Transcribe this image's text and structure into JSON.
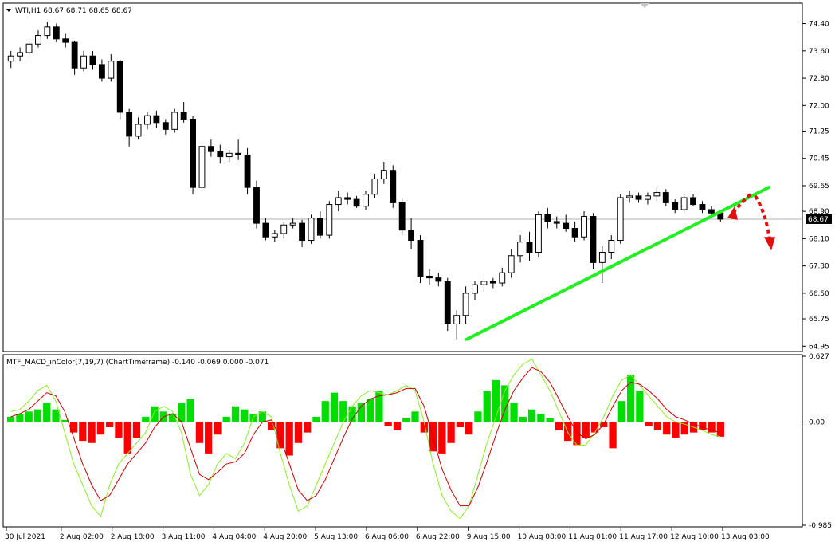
{
  "chart_data": {
    "type": "candlestick",
    "main": {
      "header": "WTI,H1  68.67 68.71 68.65 68.67",
      "symbol": "WTI",
      "timeframe": "H1",
      "ohlc_readout": [
        68.67,
        68.71,
        68.65,
        68.67
      ],
      "ylim": [
        64.84,
        74.95
      ],
      "y_ticks": [
        "74.40",
        "73.60",
        "72.80",
        "72.00",
        "71.25",
        "70.45",
        "69.65",
        "68.90",
        "68.10",
        "67.30",
        "66.50",
        "65.75",
        "64.95"
      ],
      "current_price": "68.67",
      "current_price_value": 68.67,
      "candles_approx": [
        [
          73.3,
          73.6,
          73.1,
          73.45
        ],
        [
          73.45,
          73.7,
          73.3,
          73.55
        ],
        [
          73.55,
          73.9,
          73.4,
          73.8
        ],
        [
          73.8,
          74.2,
          73.7,
          74.05
        ],
        [
          74.05,
          74.45,
          73.95,
          74.3
        ],
        [
          74.3,
          74.4,
          73.85,
          73.95
        ],
        [
          73.95,
          74.1,
          73.7,
          73.85
        ],
        [
          73.85,
          73.9,
          72.9,
          73.1
        ],
        [
          73.1,
          73.6,
          73.0,
          73.45
        ],
        [
          73.45,
          73.6,
          73.05,
          73.2
        ],
        [
          73.2,
          73.35,
          72.7,
          72.8
        ],
        [
          72.8,
          73.5,
          72.7,
          73.3
        ],
        [
          73.3,
          73.35,
          71.6,
          71.8
        ],
        [
          71.8,
          71.9,
          70.8,
          71.1
        ],
        [
          71.1,
          71.65,
          71.0,
          71.45
        ],
        [
          71.45,
          71.8,
          71.3,
          71.7
        ],
        [
          71.7,
          71.85,
          71.35,
          71.5
        ],
        [
          71.5,
          71.6,
          71.15,
          71.3
        ],
        [
          71.3,
          71.9,
          71.2,
          71.8
        ],
        [
          71.8,
          72.1,
          71.5,
          71.6
        ],
        [
          71.6,
          71.7,
          69.4,
          69.6
        ],
        [
          69.6,
          70.95,
          69.5,
          70.8
        ],
        [
          70.8,
          71.0,
          70.5,
          70.65
        ],
        [
          70.65,
          70.85,
          70.3,
          70.5
        ],
        [
          70.5,
          70.7,
          70.35,
          70.6
        ],
        [
          70.6,
          71.0,
          70.4,
          70.55
        ],
        [
          70.55,
          70.75,
          69.4,
          69.6
        ],
        [
          69.6,
          69.8,
          68.4,
          68.55
        ],
        [
          68.55,
          68.7,
          68.05,
          68.15
        ],
        [
          68.15,
          68.35,
          68.0,
          68.25
        ],
        [
          68.25,
          68.6,
          68.1,
          68.5
        ],
        [
          68.5,
          68.7,
          68.4,
          68.55
        ],
        [
          68.55,
          68.65,
          67.85,
          68.05
        ],
        [
          68.05,
          68.8,
          67.95,
          68.7
        ],
        [
          68.7,
          68.9,
          68.1,
          68.2
        ],
        [
          68.2,
          69.2,
          68.1,
          69.1
        ],
        [
          69.1,
          69.5,
          68.9,
          69.3
        ],
        [
          69.3,
          69.45,
          69.1,
          69.25
        ],
        [
          69.25,
          69.35,
          69.0,
          69.05
        ],
        [
          69.05,
          69.5,
          68.95,
          69.4
        ],
        [
          69.4,
          70.0,
          69.3,
          69.85
        ],
        [
          69.85,
          70.35,
          69.7,
          70.1
        ],
        [
          70.1,
          70.25,
          69.0,
          69.15
        ],
        [
          69.15,
          69.3,
          68.2,
          68.35
        ],
        [
          68.35,
          68.7,
          67.8,
          68.05
        ],
        [
          68.05,
          68.2,
          66.8,
          67.0
        ],
        [
          67.0,
          67.2,
          66.75,
          66.95
        ],
        [
          66.95,
          67.1,
          66.7,
          66.85
        ],
        [
          66.85,
          66.95,
          65.4,
          65.6
        ],
        [
          65.6,
          66.0,
          65.15,
          65.85
        ],
        [
          65.85,
          66.7,
          65.6,
          66.5
        ],
        [
          66.5,
          66.85,
          66.3,
          66.75
        ],
        [
          66.75,
          66.95,
          66.55,
          66.85
        ],
        [
          66.85,
          66.95,
          66.65,
          66.8
        ],
        [
          66.8,
          67.25,
          66.7,
          67.1
        ],
        [
          67.1,
          67.8,
          66.95,
          67.6
        ],
        [
          67.6,
          68.2,
          67.4,
          68.0
        ],
        [
          68.0,
          68.3,
          67.45,
          67.7
        ],
        [
          67.7,
          68.9,
          67.55,
          68.8
        ],
        [
          68.8,
          69.0,
          68.4,
          68.6
        ],
        [
          68.6,
          68.75,
          68.4,
          68.55
        ],
        [
          68.55,
          68.8,
          68.3,
          68.4
        ],
        [
          68.4,
          68.6,
          68.0,
          68.15
        ],
        [
          68.15,
          68.9,
          68.05,
          68.75
        ],
        [
          68.75,
          68.85,
          67.2,
          67.4
        ],
        [
          67.4,
          67.9,
          66.8,
          67.7
        ],
        [
          67.7,
          68.2,
          67.5,
          68.05
        ],
        [
          68.05,
          69.4,
          67.95,
          69.3
        ],
        [
          69.3,
          69.5,
          69.15,
          69.35
        ],
        [
          69.35,
          69.45,
          69.15,
          69.25
        ],
        [
          69.25,
          69.45,
          69.1,
          69.35
        ],
        [
          69.35,
          69.6,
          69.2,
          69.45
        ],
        [
          69.45,
          69.55,
          69.05,
          69.15
        ],
        [
          69.15,
          69.25,
          68.85,
          68.95
        ],
        [
          68.95,
          69.4,
          68.85,
          69.3
        ],
        [
          69.3,
          69.4,
          69.05,
          69.1
        ],
        [
          69.1,
          69.2,
          68.85,
          68.95
        ],
        [
          68.95,
          69.05,
          68.75,
          68.85
        ],
        [
          68.85,
          68.95,
          68.6,
          68.67
        ]
      ]
    },
    "indicator": {
      "header": "MTF_MACD_inColor(7,19,7) (ChartTimeframe) -0.140 -0.069 0.000 -0.071",
      "name": "MTF_MACD_inColor",
      "params": "7,19,7",
      "values": [
        -0.14,
        -0.069,
        0.0,
        -0.071
      ],
      "ylim": [
        -0.985,
        0.627
      ],
      "y_ticks": [
        "0.627",
        "0.00",
        "-0.985"
      ],
      "histogram_approx": [
        0.05,
        0.08,
        0.1,
        0.12,
        0.18,
        0.12,
        0.02,
        -0.1,
        -0.18,
        -0.2,
        -0.12,
        -0.05,
        -0.15,
        -0.3,
        -0.15,
        0.05,
        0.15,
        0.1,
        0.08,
        0.18,
        0.22,
        -0.2,
        -0.3,
        -0.12,
        0.05,
        0.15,
        0.12,
        0.08,
        0.1,
        -0.08,
        -0.25,
        -0.32,
        -0.2,
        -0.1,
        0.05,
        0.2,
        0.28,
        0.2,
        0.15,
        0.18,
        0.22,
        0.3,
        -0.04,
        -0.08,
        0.04,
        0.1,
        -0.1,
        -0.28,
        -0.3,
        -0.2,
        -0.05,
        -0.12,
        0.1,
        0.3,
        0.4,
        0.35,
        0.18,
        0.05,
        0.12,
        0.08,
        0.04,
        -0.08,
        -0.18,
        -0.22,
        -0.15,
        -0.1,
        -0.05,
        -0.25,
        0.2,
        0.45,
        0.3,
        -0.04,
        -0.08,
        -0.12,
        -0.15,
        -0.12,
        -0.1,
        -0.08,
        -0.1,
        -0.14
      ],
      "macd_line_approx": [
        0.1,
        0.12,
        0.2,
        0.3,
        0.35,
        0.2,
        -0.1,
        -0.4,
        -0.6,
        -0.8,
        -0.9,
        -0.6,
        -0.4,
        -0.3,
        -0.2,
        -0.1,
        0.1,
        0.15,
        0.1,
        -0.1,
        -0.5,
        -0.7,
        -0.6,
        -0.4,
        -0.3,
        -0.35,
        -0.2,
        0.05,
        0.1,
        0.05,
        -0.3,
        -0.6,
        -0.85,
        -0.8,
        -0.6,
        -0.4,
        -0.2,
        0.0,
        0.15,
        0.25,
        0.3,
        0.28,
        0.26,
        0.3,
        0.35,
        0.3,
        0.0,
        -0.4,
        -0.7,
        -0.85,
        -0.92,
        -0.8,
        -0.5,
        -0.2,
        0.05,
        0.3,
        0.45,
        0.55,
        0.6,
        0.45,
        0.3,
        0.1,
        -0.1,
        -0.22,
        -0.22,
        -0.1,
        0.05,
        0.25,
        0.4,
        0.45,
        0.35,
        0.25,
        0.15,
        0.05,
        0.0,
        -0.02,
        -0.05,
        -0.08,
        -0.12,
        -0.14
      ],
      "signal_line_approx": [
        0.05,
        0.08,
        0.12,
        0.2,
        0.28,
        0.25,
        0.1,
        -0.15,
        -0.4,
        -0.6,
        -0.75,
        -0.7,
        -0.55,
        -0.4,
        -0.3,
        -0.2,
        -0.05,
        0.05,
        0.08,
        0.0,
        -0.25,
        -0.5,
        -0.55,
        -0.48,
        -0.4,
        -0.38,
        -0.3,
        -0.12,
        0.0,
        0.02,
        -0.15,
        -0.4,
        -0.65,
        -0.75,
        -0.7,
        -0.55,
        -0.35,
        -0.15,
        0.03,
        0.15,
        0.22,
        0.25,
        0.26,
        0.28,
        0.32,
        0.32,
        0.15,
        -0.15,
        -0.45,
        -0.65,
        -0.8,
        -0.8,
        -0.62,
        -0.38,
        -0.12,
        0.12,
        0.3,
        0.42,
        0.52,
        0.48,
        0.38,
        0.22,
        0.05,
        -0.1,
        -0.16,
        -0.12,
        -0.02,
        0.15,
        0.3,
        0.38,
        0.36,
        0.3,
        0.22,
        0.12,
        0.05,
        0.02,
        -0.02,
        -0.05,
        -0.08,
        -0.1
      ]
    },
    "x_labels": [
      "30 Jul 2021",
      "2 Aug 02:00",
      "2 Aug 18:00",
      "3 Aug 11:00",
      "4 Aug 04:00",
      "4 Aug 20:00",
      "5 Aug 13:00",
      "6 Aug 06:00",
      "6 Aug 22:00",
      "9 Aug 15:00",
      "10 Aug 08:00",
      "11 Aug 01:00",
      "11 Aug 17:00",
      "12 Aug 10:00",
      "13 Aug 03:00"
    ],
    "annotations": {
      "trendline": {
        "color": "#22ee22",
        "from": {
          "time": "9 Aug 15:00",
          "price": 65.15
        },
        "to": {
          "time": "13 Aug 03:00",
          "price": 69.6
        }
      },
      "arrow": {
        "color": "#e01010",
        "style": "dashed",
        "meaning": "rebound off trendline then drop"
      }
    },
    "colors": {
      "bull_candle": "#ffffff",
      "bear_candle": "#000000",
      "hist_positive": "#00dd00",
      "hist_negative": "#ff0000",
      "macd_line": "#88ee22",
      "signal_line": "#cc0000",
      "grid": "#c0c0c0",
      "axis": "#000000"
    },
    "grid": false
  }
}
